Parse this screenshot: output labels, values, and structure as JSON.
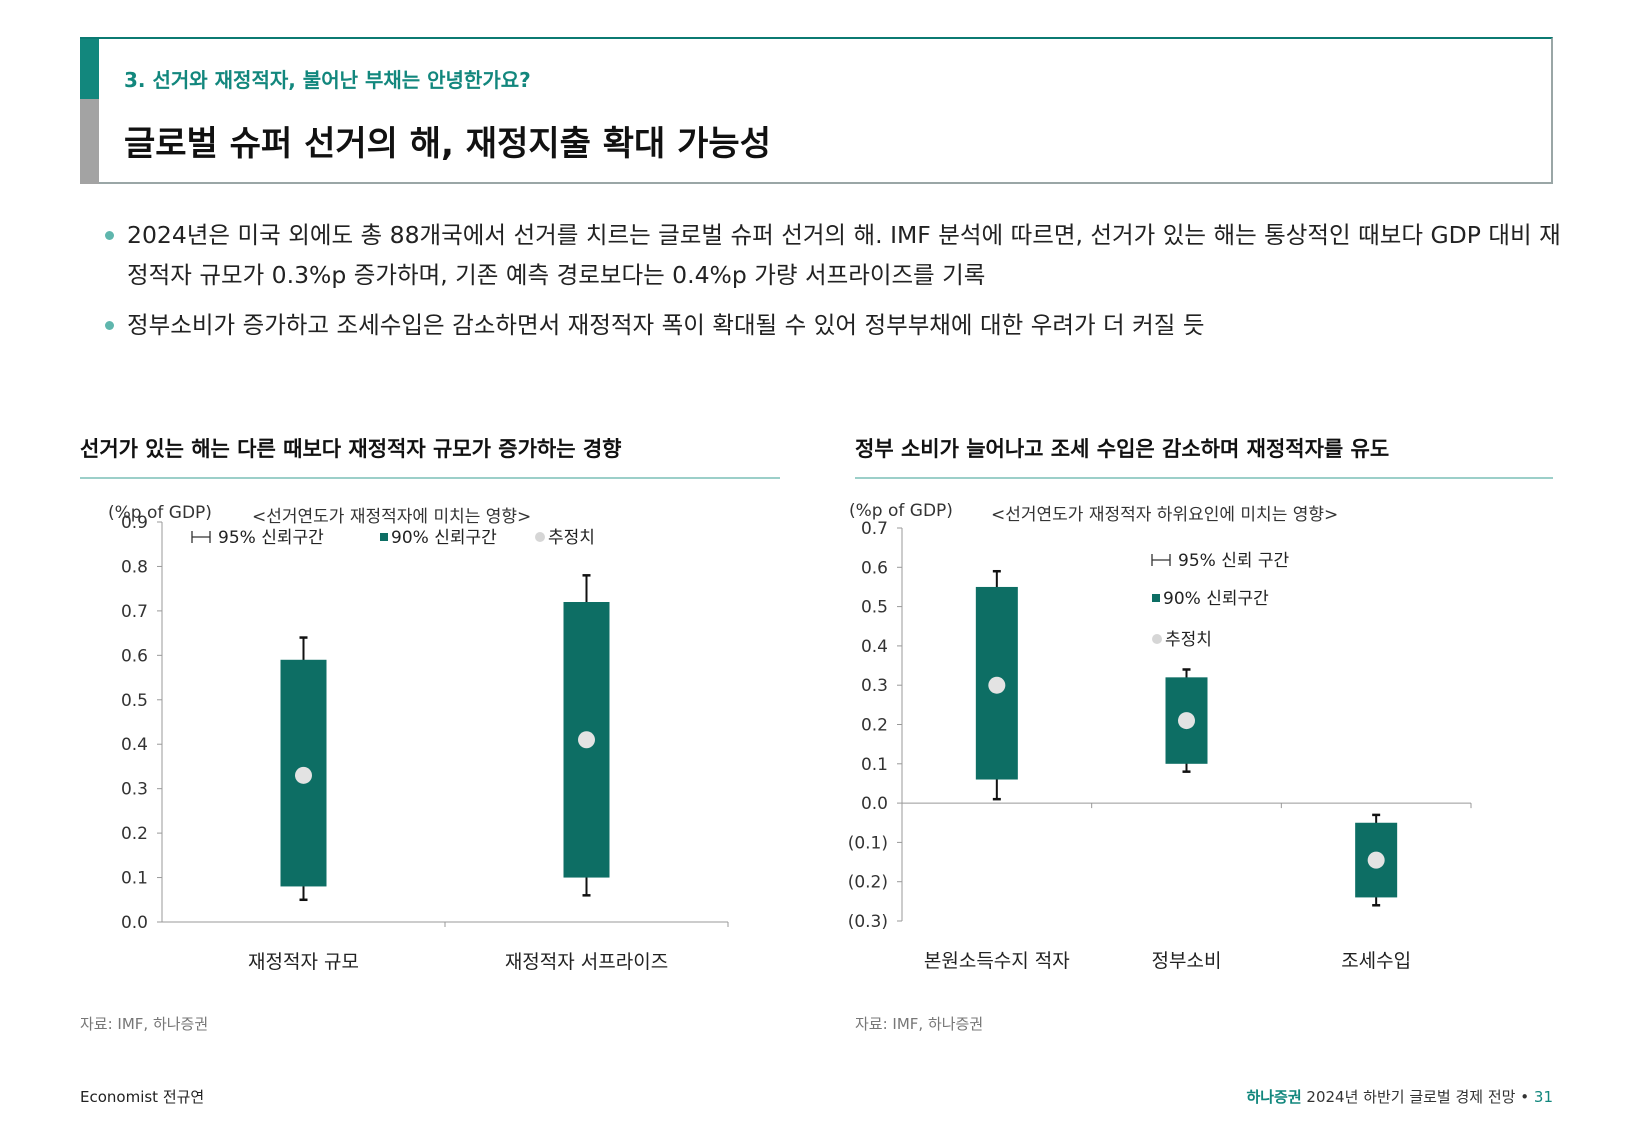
{
  "header": {
    "section_label": "3. 선거와 재정적자, 불어난 부채는 안녕한가요?",
    "title": "글로벌 슈퍼 선거의 해, 재정지출 확대 가능성"
  },
  "bullets": [
    "2024년은 미국 외에도 총 88개국에서 선거를 치르는 글로벌 슈퍼 선거의 해. IMF 분석에 따르면, 선거가 있는 해는 통상적인 때보다 GDP 대비 재정적자 규모가 0.3%p 증가하며, 기존 예측 경로보다는 0.4%p 가량 서프라이즈를 기록",
    "정부소비가 증가하고 조세수입은 감소하면서 재정적자 폭이 확대될 수 있어 정부부채에 대한 우려가 더 커질 듯"
  ],
  "colors": {
    "accent": "#12877d",
    "box_fill": "#0d6e64",
    "estimate_dot": "#e3e3e3",
    "rule": "#9ccfc9"
  },
  "chart_data": [
    {
      "type": "box",
      "title": "선거가 있는 해는 다른 때보다 재정적자 규모가 증가하는 경향",
      "unit_label": "(%p of GDP)",
      "subtitle": "<선거연도가 재정적자에 미치는 영향>",
      "legend": {
        "ci95": "95% 신뢰구간",
        "ci90": "90% 신뢰구간",
        "estimate": "추정치"
      },
      "ylim": [
        0.0,
        0.9
      ],
      "yticks": [
        "0.0",
        "0.1",
        "0.2",
        "0.3",
        "0.4",
        "0.5",
        "0.6",
        "0.7",
        "0.8",
        "0.9"
      ],
      "categories": [
        "재정적자 규모",
        "재정적자 서프라이즈"
      ],
      "ci95_low": [
        0.05,
        0.06
      ],
      "ci95_high": [
        0.64,
        0.78
      ],
      "ci90_low": [
        0.08,
        0.1
      ],
      "ci90_high": [
        0.59,
        0.72
      ],
      "estimate": [
        0.33,
        0.41
      ],
      "source": "자료: IMF, 하나증권"
    },
    {
      "type": "box",
      "title": "정부 소비가 늘어나고 조세 수입은 감소하며 재정적자를 유도",
      "unit_label": "(%p of GDP)",
      "subtitle": "<선거연도가 재정적자 하위요인에 미치는 영향>",
      "legend": {
        "ci95": "95% 신뢰 구간",
        "ci90": "90% 신뢰구간",
        "estimate": "추정치"
      },
      "ylim": [
        -0.3,
        0.7
      ],
      "yticks": [
        "(0.3)",
        "(0.2)",
        "(0.1)",
        "0.0",
        "0.1",
        "0.2",
        "0.3",
        "0.4",
        "0.5",
        "0.6",
        "0.7"
      ],
      "categories": [
        "본원소득수지 적자",
        "정부소비",
        "조세수입"
      ],
      "ci95_low": [
        0.01,
        0.08,
        -0.26
      ],
      "ci95_high": [
        0.59,
        0.34,
        -0.03
      ],
      "ci90_low": [
        0.06,
        0.1,
        -0.24
      ],
      "ci90_high": [
        0.55,
        0.32,
        -0.05
      ],
      "estimate": [
        0.3,
        0.21,
        -0.145
      ],
      "source": "자료: IMF, 하나증권"
    }
  ],
  "footer": {
    "author": "Economist 전규연",
    "brand": "하나증권",
    "report": "2024년 하반기 글로벌 경제 전망",
    "separator": "•",
    "page": "31"
  }
}
